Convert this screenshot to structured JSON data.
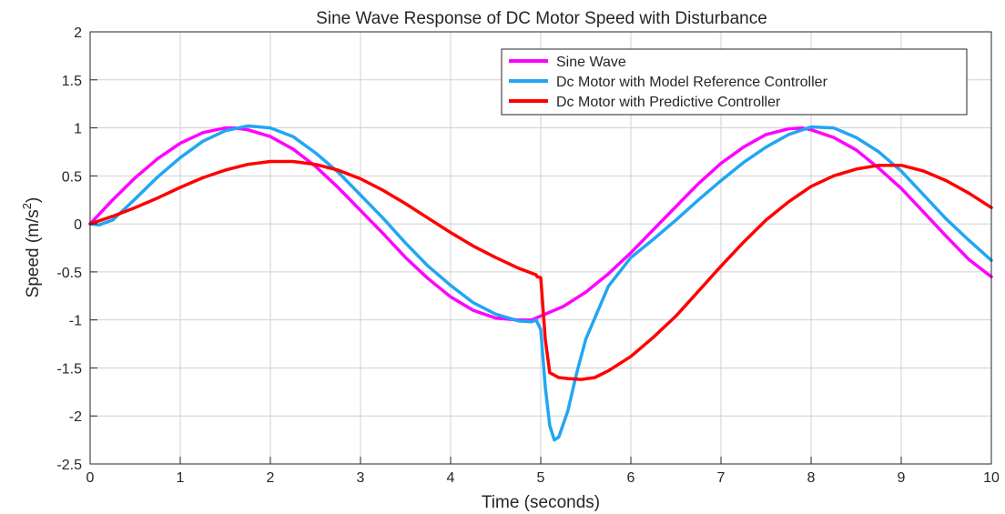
{
  "chart_data": {
    "type": "line",
    "title": "Sine Wave Response of DC Motor Speed with Disturbance",
    "xlabel": "Time (seconds)",
    "ylabel_base": "Speed (m/s",
    "ylabel_sup": "2",
    "ylabel_end": ")",
    "xlim": [
      0,
      10
    ],
    "ylim": [
      -2.5,
      2
    ],
    "xticks": [
      "0",
      "1",
      "2",
      "3",
      "4",
      "5",
      "6",
      "7",
      "8",
      "9",
      "10"
    ],
    "yticks": [
      "-2.5",
      "-2",
      "-1.5",
      "-1",
      "-0.5",
      "0",
      "0.5",
      "1",
      "1.5",
      "2"
    ],
    "grid": true,
    "legend_position": "top-right",
    "series": [
      {
        "name": "Sine Wave",
        "color": "#ff00ff",
        "x": [
          0,
          0.25,
          0.5,
          0.75,
          1,
          1.25,
          1.5,
          1.6,
          1.75,
          2,
          2.25,
          2.5,
          2.75,
          3,
          3.25,
          3.5,
          3.75,
          4,
          4.25,
          4.5,
          4.75,
          4.9,
          5,
          5.25,
          5.5,
          5.75,
          6,
          6.25,
          6.5,
          6.75,
          7,
          7.25,
          7.5,
          7.75,
          7.9,
          8,
          8.25,
          8.5,
          8.75,
          9,
          9.25,
          9.5,
          9.75,
          10
        ],
        "y": [
          0,
          0.25,
          0.48,
          0.68,
          0.84,
          0.95,
          1.0,
          1.0,
          0.98,
          0.91,
          0.78,
          0.6,
          0.38,
          0.14,
          -0.1,
          -0.35,
          -0.57,
          -0.76,
          -0.9,
          -0.98,
          -1.0,
          -1.0,
          -0.96,
          -0.86,
          -0.71,
          -0.52,
          -0.3,
          -0.06,
          0.18,
          0.42,
          0.63,
          0.8,
          0.93,
          0.99,
          1.0,
          0.98,
          0.9,
          0.77,
          0.58,
          0.37,
          0.12,
          -0.13,
          -0.37,
          -0.55
        ]
      },
      {
        "name": "Dc Motor with Model Reference Controller",
        "color": "#22a6f2",
        "x": [
          0,
          0.1,
          0.25,
          0.5,
          0.75,
          1,
          1.25,
          1.5,
          1.75,
          2,
          2.25,
          2.5,
          2.75,
          3,
          3.25,
          3.5,
          3.75,
          4,
          4.25,
          4.5,
          4.75,
          4.9,
          4.95,
          5.0,
          5.05,
          5.1,
          5.15,
          5.2,
          5.3,
          5.4,
          5.5,
          5.75,
          6,
          6.25,
          6.5,
          6.75,
          7,
          7.25,
          7.5,
          7.75,
          8,
          8.25,
          8.5,
          8.75,
          9,
          9.25,
          9.5,
          9.75,
          10
        ],
        "y": [
          0,
          -0.01,
          0.04,
          0.26,
          0.49,
          0.69,
          0.86,
          0.97,
          1.02,
          1.0,
          0.91,
          0.74,
          0.54,
          0.3,
          0.06,
          -0.2,
          -0.44,
          -0.64,
          -0.82,
          -0.94,
          -1.01,
          -1.02,
          -1.0,
          -1.1,
          -1.7,
          -2.1,
          -2.25,
          -2.22,
          -1.95,
          -1.55,
          -1.2,
          -0.65,
          -0.35,
          -0.16,
          0.04,
          0.25,
          0.45,
          0.64,
          0.8,
          0.93,
          1.01,
          1.0,
          0.9,
          0.75,
          0.55,
          0.3,
          0.05,
          -0.17,
          -0.38
        ]
      },
      {
        "name": "Dc Motor with Predictive Controller",
        "color": "#ff0000",
        "x": [
          0,
          0.25,
          0.5,
          0.75,
          1,
          1.25,
          1.5,
          1.75,
          2,
          2.25,
          2.5,
          2.75,
          3,
          3.25,
          3.5,
          3.75,
          4,
          4.25,
          4.5,
          4.75,
          4.95,
          4.96,
          5.0,
          5.05,
          5.1,
          5.2,
          5.3,
          5.45,
          5.6,
          5.75,
          6,
          6.25,
          6.5,
          6.75,
          7,
          7.25,
          7.5,
          7.75,
          8,
          8.25,
          8.5,
          8.75,
          9,
          9.25,
          9.5,
          9.75,
          10
        ],
        "y": [
          0,
          0.08,
          0.17,
          0.27,
          0.38,
          0.48,
          0.56,
          0.62,
          0.65,
          0.65,
          0.62,
          0.56,
          0.47,
          0.35,
          0.21,
          0.06,
          -0.09,
          -0.23,
          -0.35,
          -0.46,
          -0.53,
          -0.55,
          -0.56,
          -1.2,
          -1.55,
          -1.6,
          -1.61,
          -1.62,
          -1.6,
          -1.53,
          -1.38,
          -1.18,
          -0.96,
          -0.7,
          -0.44,
          -0.19,
          0.04,
          0.23,
          0.39,
          0.5,
          0.57,
          0.61,
          0.61,
          0.55,
          0.45,
          0.32,
          0.17
        ]
      }
    ]
  }
}
